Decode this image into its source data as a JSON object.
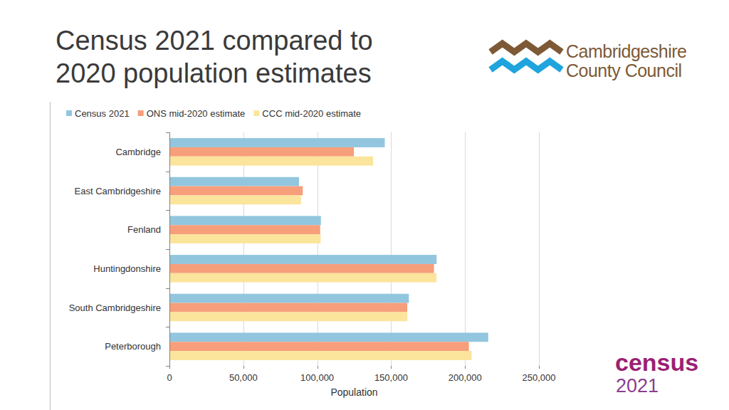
{
  "chart_data": {
    "type": "bar",
    "orientation": "horizontal",
    "title": "Census 2021 compared to 2020 population estimates",
    "x_label": "Population",
    "categories": [
      "Cambridge",
      "East Cambridgeshire",
      "Fenland",
      "Huntingdonshire",
      "South Cambridgeshire",
      "Peterborough"
    ],
    "series": [
      {
        "name": "Census 2021",
        "color": "#92c6de",
        "values": [
          145700,
          87700,
          102500,
          180800,
          162000,
          215700
        ]
      },
      {
        "name": "ONS mid-2020 estimate",
        "color": "#f79e7b",
        "values": [
          124800,
          90200,
          102000,
          179000,
          160900,
          202600
        ]
      },
      {
        "name": "CCC mid-2020 estimate",
        "color": "#fbe49c",
        "values": [
          137800,
          89000,
          102300,
          180700,
          161000,
          204500
        ]
      }
    ],
    "xlim": [
      0,
      250000
    ],
    "xticks": [
      0,
      {
        "value": 50000,
        "label": "50,000"
      },
      {
        "value": 100000,
        "label": "100,000"
      },
      {
        "value": 150000,
        "label": "150,000"
      },
      {
        "value": 200000,
        "label": "200,000"
      },
      {
        "value": 250000,
        "label": "250,000"
      }
    ],
    "grid": true,
    "legend": "top"
  },
  "branding": {
    "council_lines": [
      "Cambridgeshire",
      "County Council"
    ],
    "census_lines": [
      "census",
      "2021"
    ]
  }
}
